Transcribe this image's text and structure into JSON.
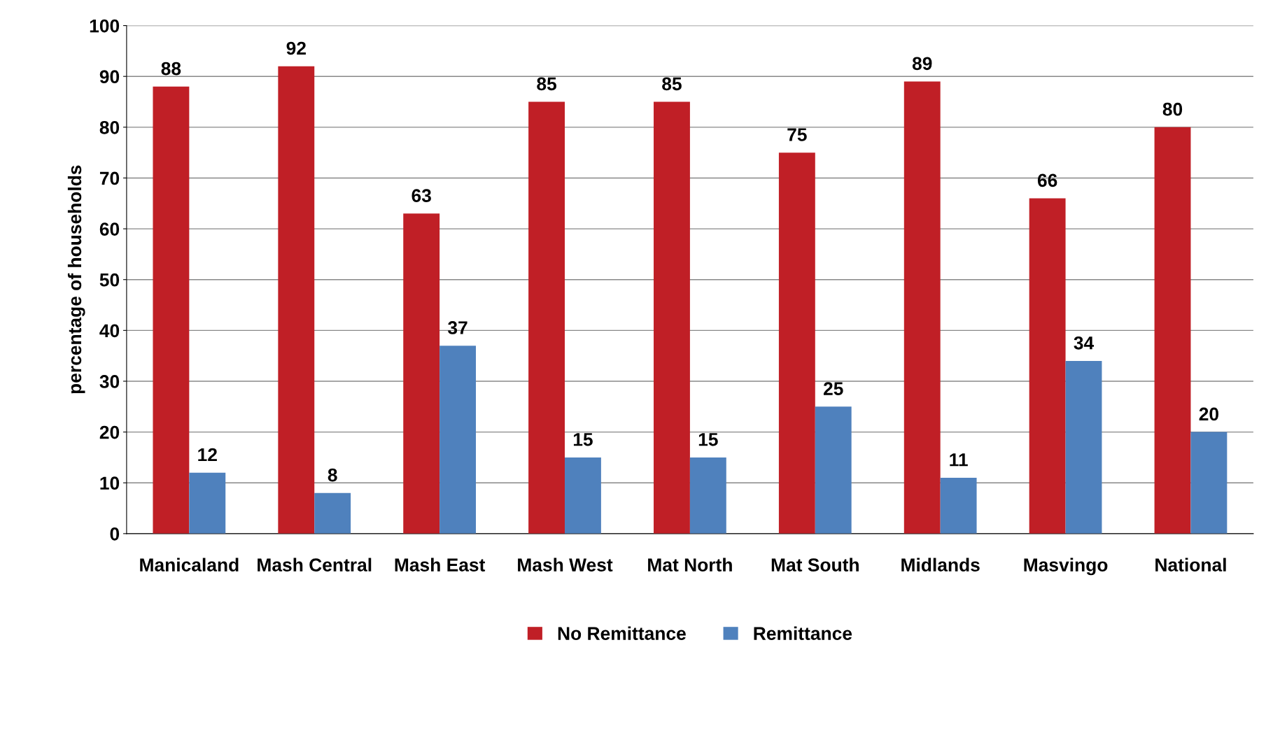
{
  "chart_data": {
    "type": "bar",
    "ylabel": "percentage of households",
    "categories": [
      "Manicaland",
      "Mash Central",
      "Mash East",
      "Mash West",
      "Mat North",
      "Mat South",
      "Midlands",
      "Masvingo",
      "National"
    ],
    "series": [
      {
        "name": "No Remittance",
        "color": "#c01f26",
        "values": [
          88,
          92,
          63,
          85,
          85,
          75,
          89,
          66,
          80
        ]
      },
      {
        "name": "Remittance",
        "color": "#4f81bd",
        "values": [
          12,
          8,
          37,
          15,
          15,
          25,
          11,
          34,
          20
        ]
      }
    ],
    "ylim": [
      0,
      100
    ],
    "yticks": [
      0,
      10,
      20,
      30,
      40,
      50,
      60,
      70,
      80,
      90,
      100
    ],
    "grid": "y",
    "legend": "bottom",
    "data_labels": true
  }
}
